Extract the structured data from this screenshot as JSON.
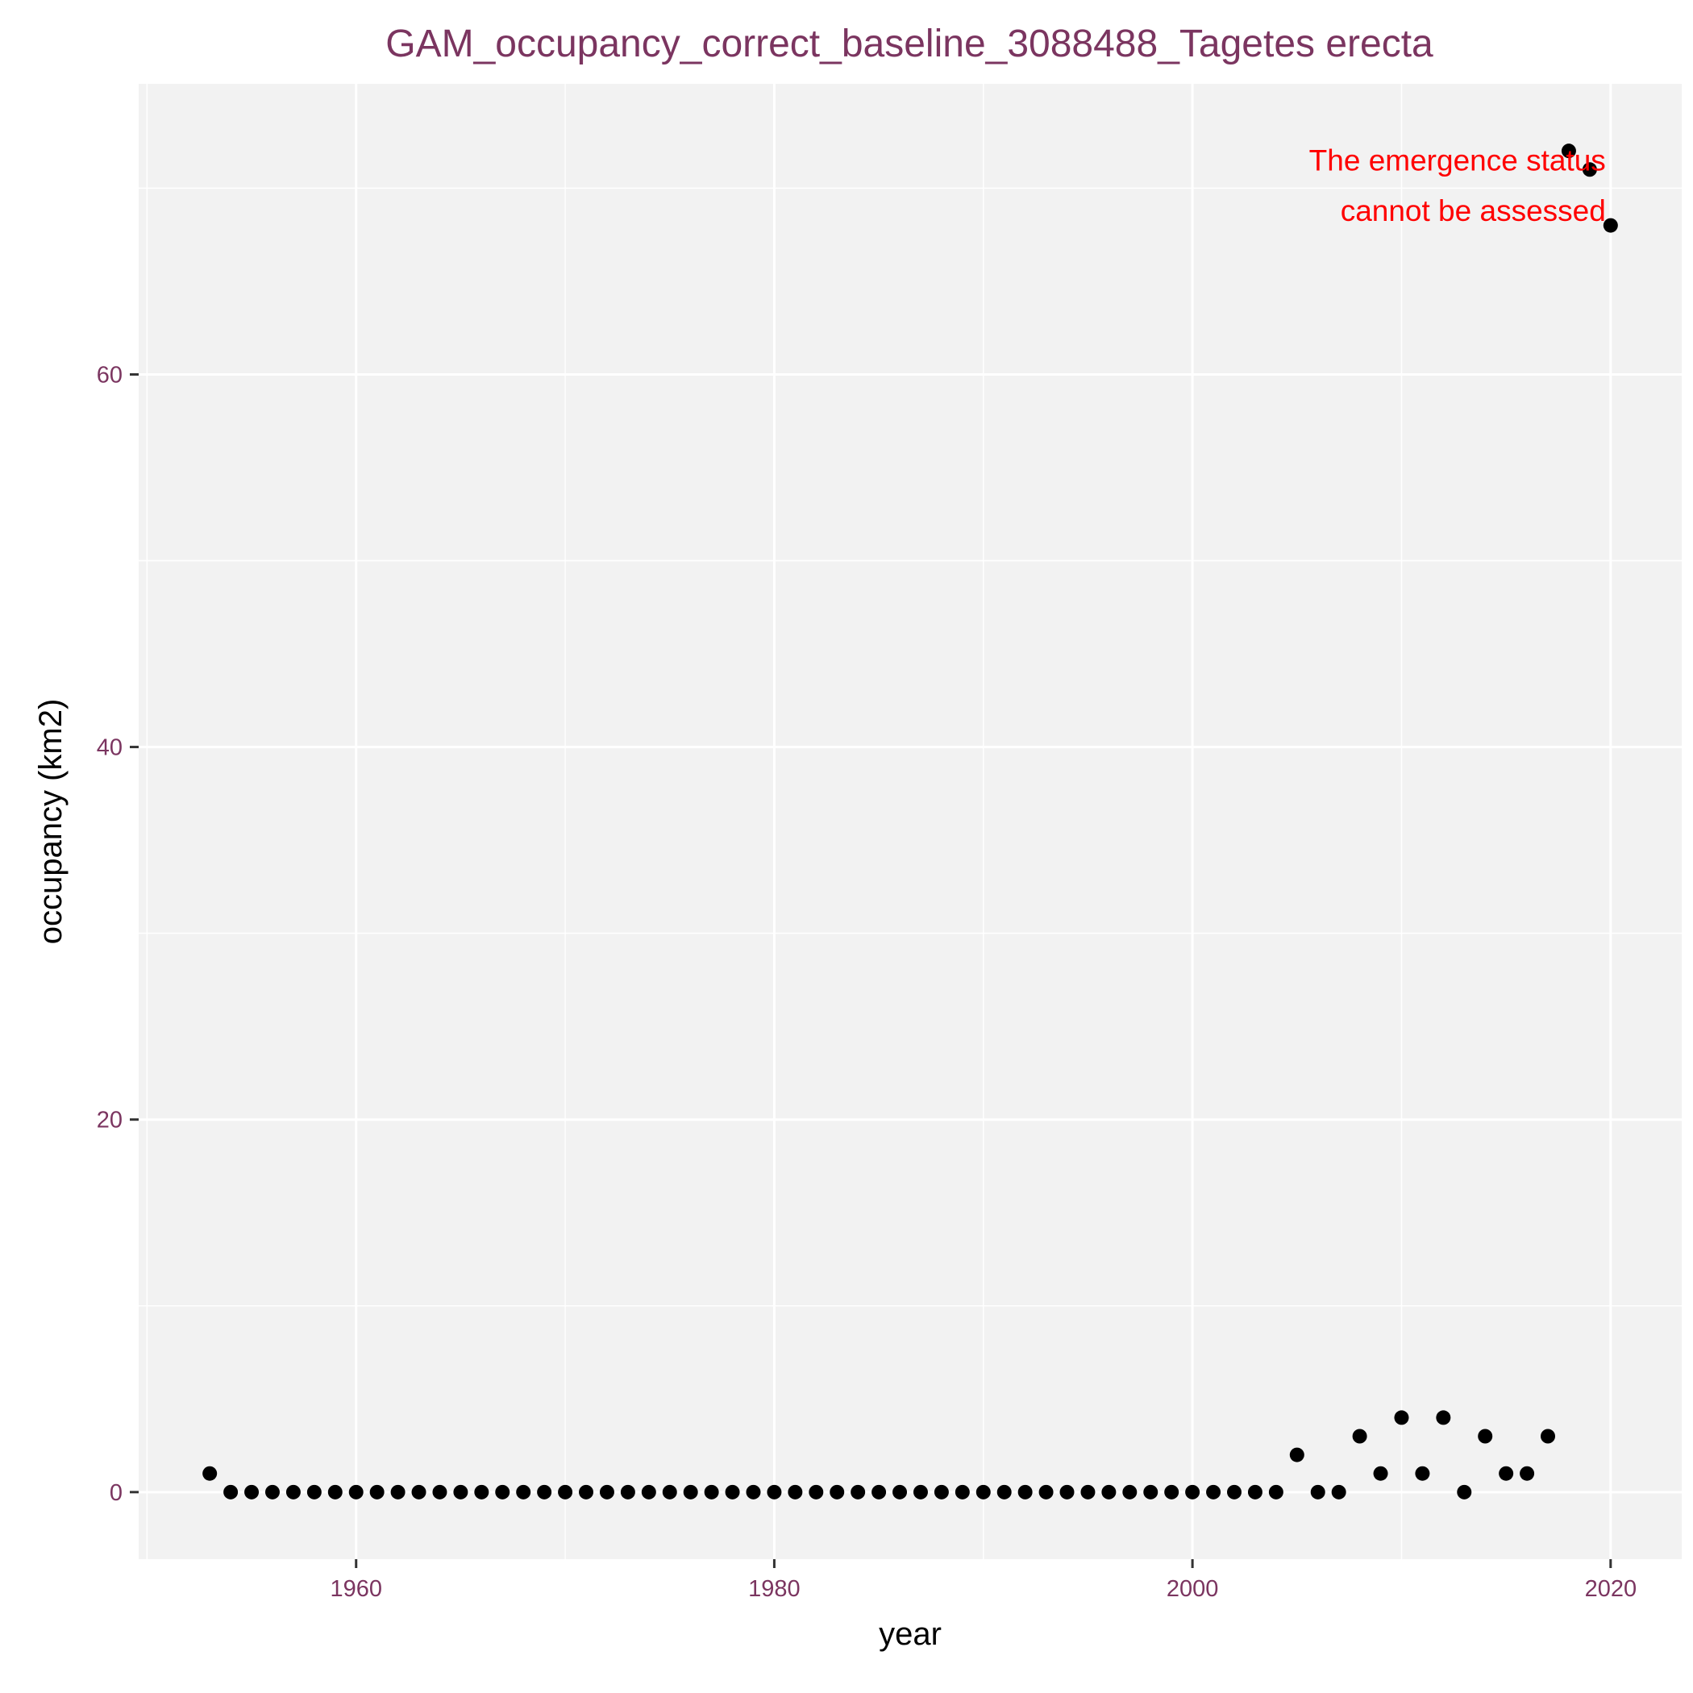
{
  "chart_data": {
    "type": "scatter",
    "title": "GAM_occupancy_correct_baseline_3088488_Tagetes erecta",
    "xlabel": "year",
    "ylabel": "occupancy (km2)",
    "xlim": [
      1949.6,
      2023.4
    ],
    "ylim": [
      -3.6,
      75.6
    ],
    "x_ticks": [
      1960,
      1980,
      2000,
      2020
    ],
    "x_tick_labels": [
      "1960",
      "1980",
      "2000",
      "2020"
    ],
    "y_ticks": [
      0,
      20,
      40,
      60
    ],
    "y_tick_labels": [
      "0",
      "20",
      "40",
      "60"
    ],
    "grid": true,
    "panel_background": "#f2f2f2",
    "point_color": "#000000",
    "title_color": "#7b3560",
    "annotation_color": "#ff0000",
    "annotation": {
      "lines": [
        "The emergence status",
        "cannot be assessed"
      ],
      "x": 2020,
      "y": [
        71.5,
        68.8
      ]
    },
    "series": [
      {
        "x": [
          1953,
          1954,
          1955,
          1956,
          1957,
          1958,
          1959,
          1960,
          1961,
          1962,
          1963,
          1964,
          1965,
          1966,
          1967,
          1968,
          1969,
          1970,
          1971,
          1972,
          1973,
          1974,
          1975,
          1976,
          1977,
          1978,
          1979,
          1980,
          1981,
          1982,
          1983,
          1984,
          1985,
          1986,
          1987,
          1988,
          1989,
          1990,
          1991,
          1992,
          1993,
          1994,
          1995,
          1996,
          1997,
          1998,
          1999,
          2000,
          2001,
          2002,
          2003,
          2004,
          2005,
          2006,
          2007,
          2008,
          2009,
          2010,
          2011,
          2012,
          2013,
          2014,
          2015,
          2016,
          2017,
          2018,
          2019,
          2020
        ],
        "values": [
          1,
          0,
          0,
          0,
          0,
          0,
          0,
          0,
          0,
          0,
          0,
          0,
          0,
          0,
          0,
          0,
          0,
          0,
          0,
          0,
          0,
          0,
          0,
          0,
          0,
          0,
          0,
          0,
          0,
          0,
          0,
          0,
          0,
          0,
          0,
          0,
          0,
          0,
          0,
          0,
          0,
          0,
          0,
          0,
          0,
          0,
          0,
          0,
          0,
          0,
          0,
          0,
          2,
          0,
          0,
          3,
          1,
          4,
          1,
          4,
          0,
          3,
          1,
          1,
          3,
          72,
          71,
          68
        ]
      }
    ]
  }
}
